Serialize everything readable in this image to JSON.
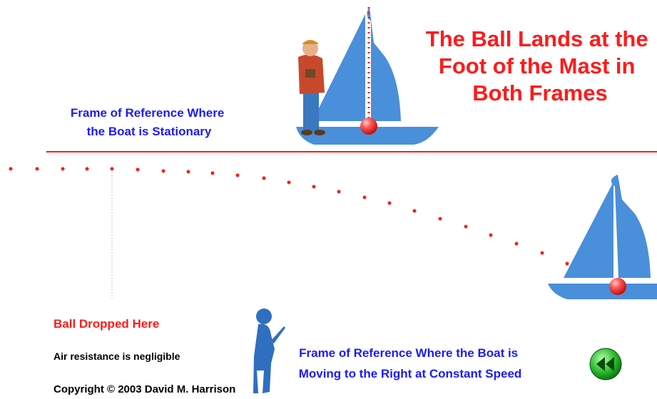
{
  "title": {
    "lines": [
      "The Ball Lands at the",
      "Foot of the Mast in",
      "Both Frames"
    ]
  },
  "stationary_frame": {
    "lines": [
      "Frame of Reference Where",
      "the Boat is Stationary"
    ]
  },
  "drop_label": "Ball Dropped Here",
  "note": "Air resistance is negligible",
  "moving_frame": {
    "lines": [
      "Frame of Reference Where the Boat is",
      "Moving to the Right at Constant Speed"
    ]
  },
  "copyright": "Copyright © 2003 David M. Harrison"
}
